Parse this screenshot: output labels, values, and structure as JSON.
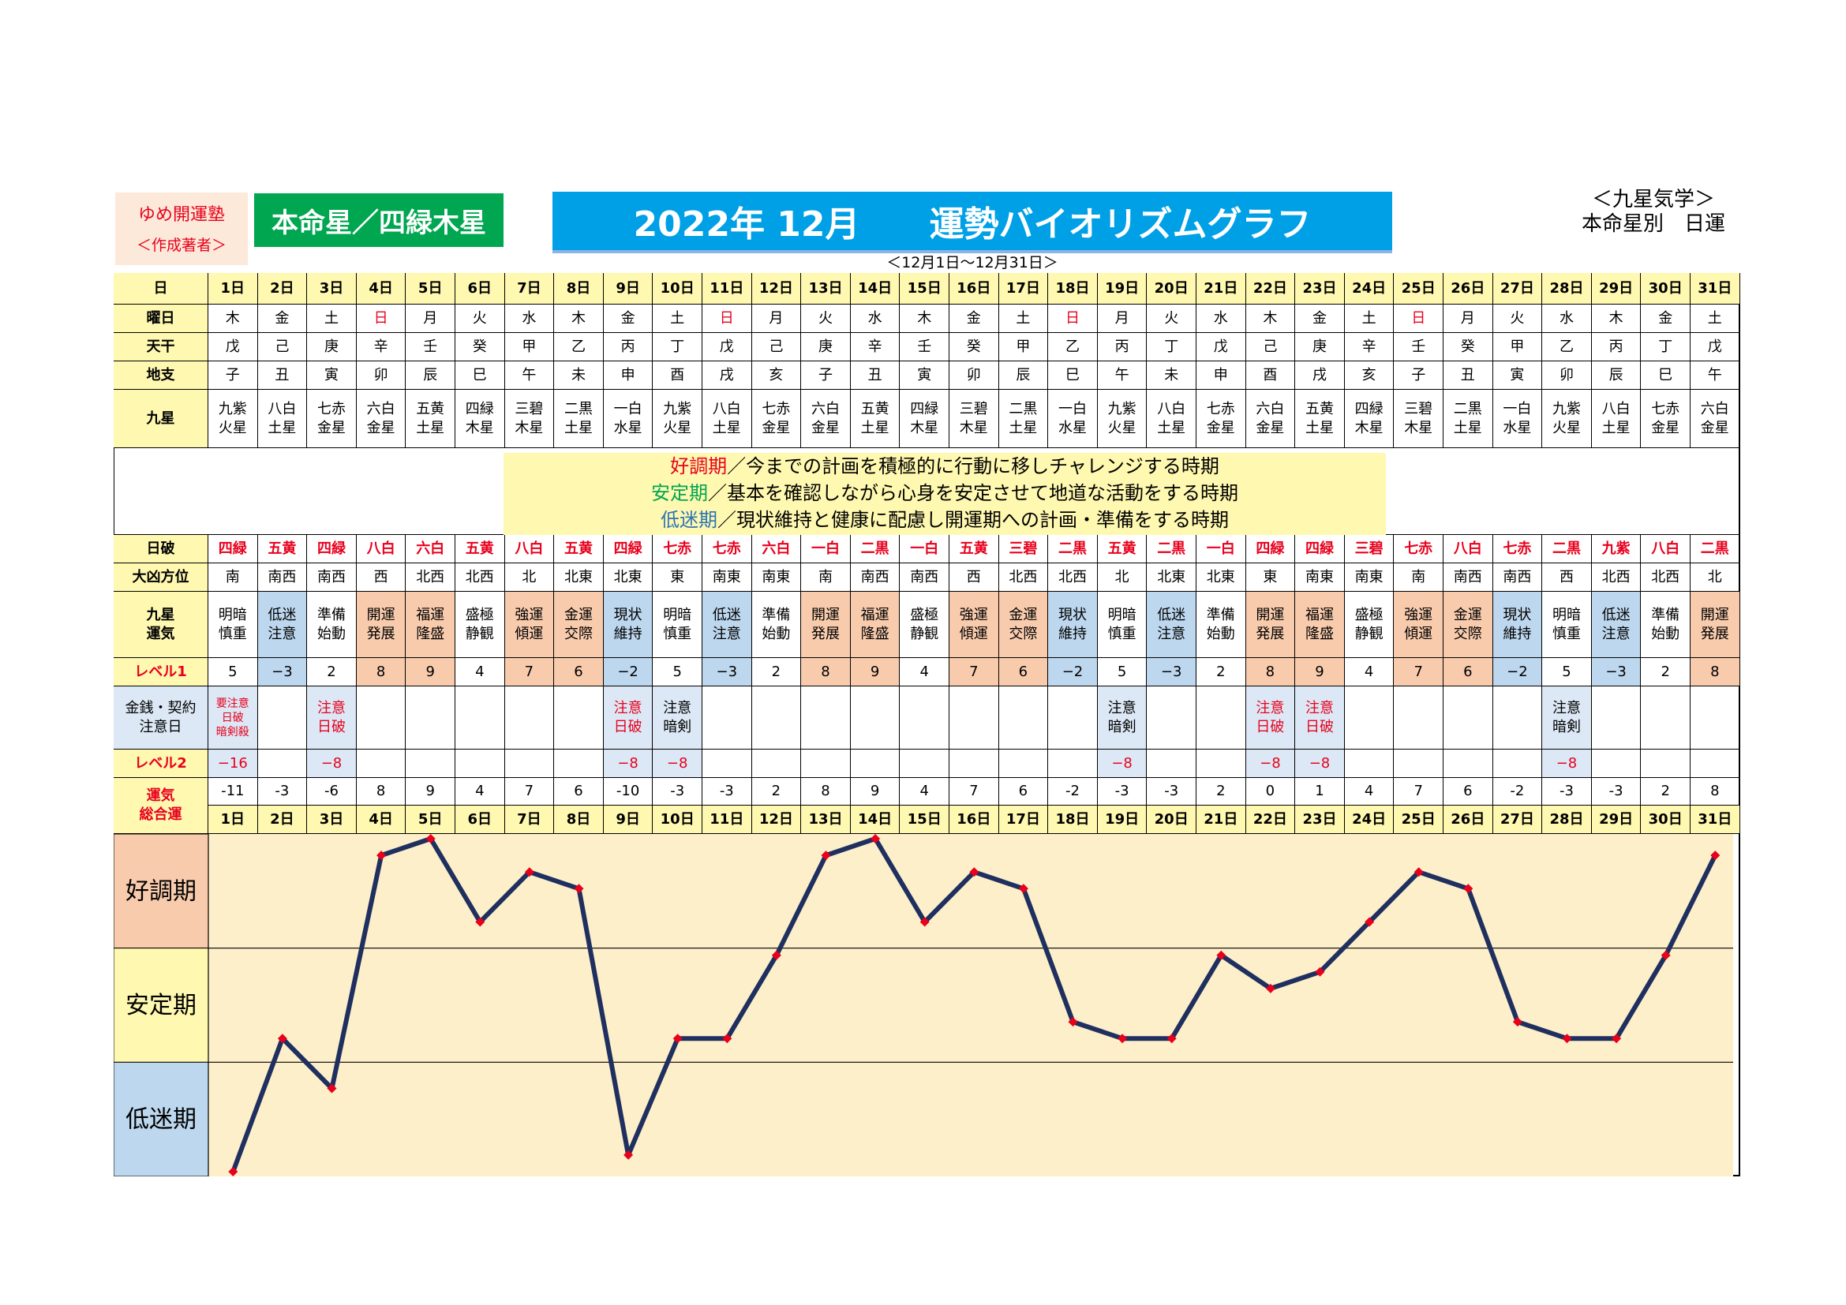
{
  "author": {
    "name": "ゆめ開運塾",
    "role": "＜作成著者＞"
  },
  "honmei_star": "本命星／四緑木星",
  "title": "2022年 12月　　運勢バイオリズムグラフ",
  "date_range": "＜12月1日～12月31日＞",
  "school": {
    "line1": "＜九星気学＞",
    "line2": "本命星別　日運"
  },
  "row_labels": {
    "day": "日",
    "weekday": "曜日",
    "kan": "天干",
    "shi": "地支",
    "kyusei": "九星",
    "nippa": "日破",
    "daikyo": "大凶方位",
    "unki": "九星\n運気",
    "level1": "レベル1",
    "kinsen": "金銭・契約\n注意日",
    "level2": "レベル2",
    "total": "運気\n総合運"
  },
  "legend": {
    "good": {
      "term": "好調期",
      "desc": "／今までの計画を積極的に行動に移しチャレンジする時期"
    },
    "stable": {
      "term": "安定期",
      "desc": "／基本を確認しながら心身を安定させて地道な活動をする時期"
    },
    "low": {
      "term": "低迷期",
      "desc": "／現状維持と健康に配慮し開運期への計画・準備をする時期"
    }
  },
  "days": [
    "1日",
    "2日",
    "3日",
    "4日",
    "5日",
    "6日",
    "7日",
    "8日",
    "9日",
    "10日",
    "11日",
    "12日",
    "13日",
    "14日",
    "15日",
    "16日",
    "17日",
    "18日",
    "19日",
    "20日",
    "21日",
    "22日",
    "23日",
    "24日",
    "25日",
    "26日",
    "27日",
    "28日",
    "29日",
    "30日",
    "31日"
  ],
  "weekdays": [
    "木",
    "金",
    "土",
    "日",
    "月",
    "火",
    "水",
    "木",
    "金",
    "土",
    "日",
    "月",
    "火",
    "水",
    "木",
    "金",
    "土",
    "日",
    "月",
    "火",
    "水",
    "木",
    "金",
    "土",
    "日",
    "月",
    "火",
    "水",
    "木",
    "金",
    "土"
  ],
  "kan": [
    "戊",
    "己",
    "庚",
    "辛",
    "壬",
    "癸",
    "甲",
    "乙",
    "丙",
    "丁",
    "戊",
    "己",
    "庚",
    "辛",
    "壬",
    "癸",
    "甲",
    "乙",
    "丙",
    "丁",
    "戊",
    "己",
    "庚",
    "辛",
    "壬",
    "癸",
    "甲",
    "乙",
    "丙",
    "丁",
    "戊"
  ],
  "shi": [
    "子",
    "丑",
    "寅",
    "卯",
    "辰",
    "巳",
    "午",
    "未",
    "申",
    "酉",
    "戌",
    "亥",
    "子",
    "丑",
    "寅",
    "卯",
    "辰",
    "巳",
    "午",
    "未",
    "申",
    "酉",
    "戌",
    "亥",
    "子",
    "丑",
    "寅",
    "卯",
    "辰",
    "巳",
    "午"
  ],
  "kyusei": [
    "九紫\n火星",
    "八白\n土星",
    "七赤\n金星",
    "六白\n金星",
    "五黄\n土星",
    "四緑\n木星",
    "三碧\n木星",
    "二黒\n土星",
    "一白\n水星",
    "九紫\n火星",
    "八白\n土星",
    "七赤\n金星",
    "六白\n金星",
    "五黄\n土星",
    "四緑\n木星",
    "三碧\n木星",
    "二黒\n土星",
    "一白\n水星",
    "九紫\n火星",
    "八白\n土星",
    "七赤\n金星",
    "六白\n金星",
    "五黄\n土星",
    "四緑\n木星",
    "三碧\n木星",
    "二黒\n土星",
    "一白\n水星",
    "九紫\n火星",
    "八白\n土星",
    "七赤\n金星",
    "六白\n金星"
  ],
  "nippa": [
    "四緑",
    "五黄",
    "四緑",
    "八白",
    "六白",
    "五黄",
    "八白",
    "五黄",
    "四緑",
    "七赤",
    "七赤",
    "六白",
    "一白",
    "二黒",
    "一白",
    "五黄",
    "三碧",
    "二黒",
    "五黄",
    "二黒",
    "一白",
    "四緑",
    "四緑",
    "三碧",
    "七赤",
    "八白",
    "七赤",
    "二黒",
    "九紫",
    "八白",
    "二黒"
  ],
  "daikyo": [
    "南",
    "南西",
    "南西",
    "西",
    "北西",
    "北西",
    "北",
    "北東",
    "北東",
    "東",
    "南東",
    "南東",
    "南",
    "南西",
    "南西",
    "西",
    "北西",
    "北西",
    "北",
    "北東",
    "北東",
    "東",
    "南東",
    "南東",
    "南",
    "南西",
    "南西",
    "西",
    "北西",
    "北西",
    "北"
  ],
  "unki": [
    "明暗\n慎重",
    "低迷\n注意",
    "準備\n始動",
    "開運\n発展",
    "福運\n隆盛",
    "盛極\n静観",
    "強運\n傾運",
    "金運\n交際",
    "現状\n維持",
    "明暗\n慎重",
    "低迷\n注意",
    "準備\n始動",
    "開運\n発展",
    "福運\n隆盛",
    "盛極\n静観",
    "強運\n傾運",
    "金運\n交際",
    "現状\n維持",
    "明暗\n慎重",
    "低迷\n注意",
    "準備\n始動",
    "開運\n発展",
    "福運\n隆盛",
    "盛極\n静観",
    "強運\n傾運",
    "金運\n交際",
    "現状\n維持",
    "明暗\n慎重",
    "低迷\n注意",
    "準備\n始動",
    "開運\n発展"
  ],
  "unki_class": [
    "",
    "low",
    "",
    "good",
    "good",
    "",
    "good",
    "good",
    "low",
    "",
    "low",
    "",
    "good",
    "good",
    "",
    "good",
    "good",
    "low",
    "",
    "low",
    "",
    "good",
    "good",
    "",
    "good",
    "good",
    "low",
    "",
    "low",
    "",
    "good"
  ],
  "level1": [
    "5",
    "−3",
    "2",
    "8",
    "9",
    "4",
    "7",
    "6",
    "−2",
    "5",
    "−3",
    "2",
    "8",
    "9",
    "4",
    "7",
    "6",
    "−2",
    "5",
    "−3",
    "2",
    "8",
    "9",
    "4",
    "7",
    "6",
    "−2",
    "5",
    "−3",
    "2",
    "8"
  ],
  "kinsen": [
    "要注意\n日破\n暗剣殺",
    "",
    "注意\n日破",
    "",
    "",
    "",
    "",
    "",
    "注意\n日破",
    "注意\n暗剣",
    "",
    "",
    "",
    "",
    "",
    "",
    "",
    "",
    "注意\n暗剣",
    "",
    "",
    "注意\n日破",
    "注意\n日破",
    "",
    "",
    "",
    "",
    "注意\n暗剣",
    "",
    "",
    ""
  ],
  "kinsen_red": [
    true,
    false,
    true,
    false,
    false,
    false,
    false,
    false,
    true,
    false,
    false,
    false,
    false,
    false,
    false,
    false,
    false,
    false,
    false,
    false,
    false,
    true,
    true,
    false,
    false,
    false,
    false,
    false,
    false,
    false,
    false
  ],
  "level2": [
    "−16",
    "",
    "−8",
    "",
    "",
    "",
    "",
    "",
    "−8",
    "−8",
    "",
    "",
    "",
    "",
    "",
    "",
    "",
    "",
    "−8",
    "",
    "",
    "−8",
    "−8",
    "",
    "",
    "",
    "",
    "−8",
    "",
    "",
    ""
  ],
  "band_labels": [
    "好調期",
    "安定期",
    "低迷期"
  ],
  "colors": {
    "line": "#1f2f5f",
    "marker": "#e8001c",
    "plot_bg": "#fdefc9",
    "band_good": "#f8cbad",
    "band_stable": "#fff8b0",
    "band_low": "#bdd7ee"
  },
  "chart_data": {
    "type": "line",
    "x": [
      "1日",
      "2日",
      "3日",
      "4日",
      "5日",
      "6日",
      "7日",
      "8日",
      "9日",
      "10日",
      "11日",
      "12日",
      "13日",
      "14日",
      "15日",
      "16日",
      "17日",
      "18日",
      "19日",
      "20日",
      "21日",
      "22日",
      "23日",
      "24日",
      "25日",
      "26日",
      "27日",
      "28日",
      "29日",
      "30日",
      "31日"
    ],
    "series": [
      {
        "values": [
          -11,
          -3,
          -6,
          8,
          9,
          4,
          7,
          6,
          -10,
          -3,
          -3,
          2,
          8,
          9,
          4,
          7,
          6,
          -2,
          -3,
          -3,
          2,
          0,
          1,
          4,
          7,
          6,
          -2,
          -3,
          -3,
          2,
          8
        ]
      }
    ],
    "ylim": [
      -11,
      9
    ],
    "bands": [
      "好調期",
      "安定期",
      "低迷期"
    ],
    "grid": true
  }
}
